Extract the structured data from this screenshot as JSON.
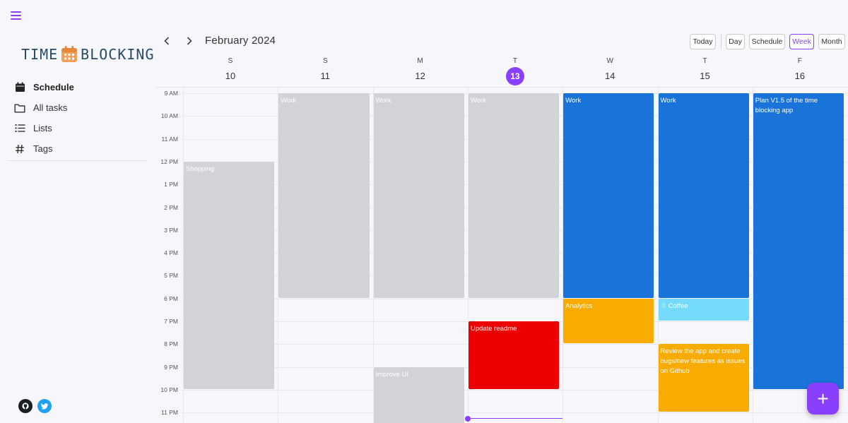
{
  "app": {
    "logo_left": "TIME",
    "logo_right": "BLOCKING"
  },
  "sidebar": {
    "items": [
      {
        "label": "Schedule",
        "icon": "calendar-icon"
      },
      {
        "label": "All tasks",
        "icon": "folder-icon"
      },
      {
        "label": "Lists",
        "icon": "list-icon"
      },
      {
        "label": "Tags",
        "icon": "hash-icon"
      }
    ],
    "social": [
      {
        "icon": "github-icon",
        "color": "#1b1f23"
      },
      {
        "icon": "twitter-icon",
        "color": "#1da1f2"
      }
    ]
  },
  "header": {
    "prev_icon": "chevron-left-icon",
    "next_icon": "chevron-right-icon",
    "title": "February 2024",
    "today": "Today",
    "views": [
      "Day",
      "Schedule",
      "Week",
      "Month"
    ],
    "active_view": "Week"
  },
  "days": [
    {
      "letter": "S",
      "num": "10",
      "today": false
    },
    {
      "letter": "S",
      "num": "11",
      "today": false
    },
    {
      "letter": "M",
      "num": "12",
      "today": false
    },
    {
      "letter": "T",
      "num": "13",
      "today": true
    },
    {
      "letter": "W",
      "num": "14",
      "today": false
    },
    {
      "letter": "T",
      "num": "15",
      "today": false
    },
    {
      "letter": "F",
      "num": "16",
      "today": false
    }
  ],
  "time_labels": [
    "9 AM",
    "10 AM",
    "11 AM",
    "12 PM",
    "1 PM",
    "2 PM",
    "3 PM",
    "4 PM",
    "5 PM",
    "6 PM",
    "7 PM",
    "8 PM",
    "9 PM",
    "10 PM",
    "11 PM"
  ],
  "events": [
    {
      "title": "Shopping",
      "day": 0,
      "start": 12,
      "end": 22,
      "color": "gray"
    },
    {
      "title": "Work",
      "day": 1,
      "start": 9,
      "end": 18,
      "color": "gray"
    },
    {
      "title": "Work",
      "day": 2,
      "start": 9,
      "end": 18,
      "color": "gray"
    },
    {
      "title": "Improve UI",
      "day": 2,
      "start": 21,
      "end": 24,
      "color": "gray"
    },
    {
      "title": "Work",
      "day": 3,
      "start": 9,
      "end": 18,
      "color": "gray"
    },
    {
      "title": "Update readme",
      "day": 3,
      "start": 19,
      "end": 22,
      "color": "red"
    },
    {
      "title": "Work",
      "day": 4,
      "start": 9,
      "end": 18,
      "color": "blue"
    },
    {
      "title": "Analytics",
      "day": 4,
      "start": 18,
      "end": 20,
      "color": "amber"
    },
    {
      "title": "Work",
      "day": 5,
      "start": 9,
      "end": 18,
      "color": "blue"
    },
    {
      "title": "☃ Coffee",
      "day": 5,
      "start": 18,
      "end": 19,
      "color": "cyan"
    },
    {
      "title": "Review the app and create bugs/new features as issues on Github",
      "day": 5,
      "start": 20,
      "end": 23,
      "color": "amber"
    },
    {
      "title": "Plan V1.5 of the time blocking app",
      "day": 6,
      "start": 9,
      "end": 22,
      "color": "blue"
    }
  ],
  "now_indicator": {
    "day": 3,
    "hour": 23.25
  },
  "fab": {
    "label": "+",
    "icon": "plus-icon"
  },
  "colors": {
    "accent": "#8a3ffc",
    "blue": "#1a73d9",
    "amber": "#f9ab00",
    "red": "#ee0000",
    "gray": "#d2d3d8",
    "cyan": "#74dbfc"
  }
}
